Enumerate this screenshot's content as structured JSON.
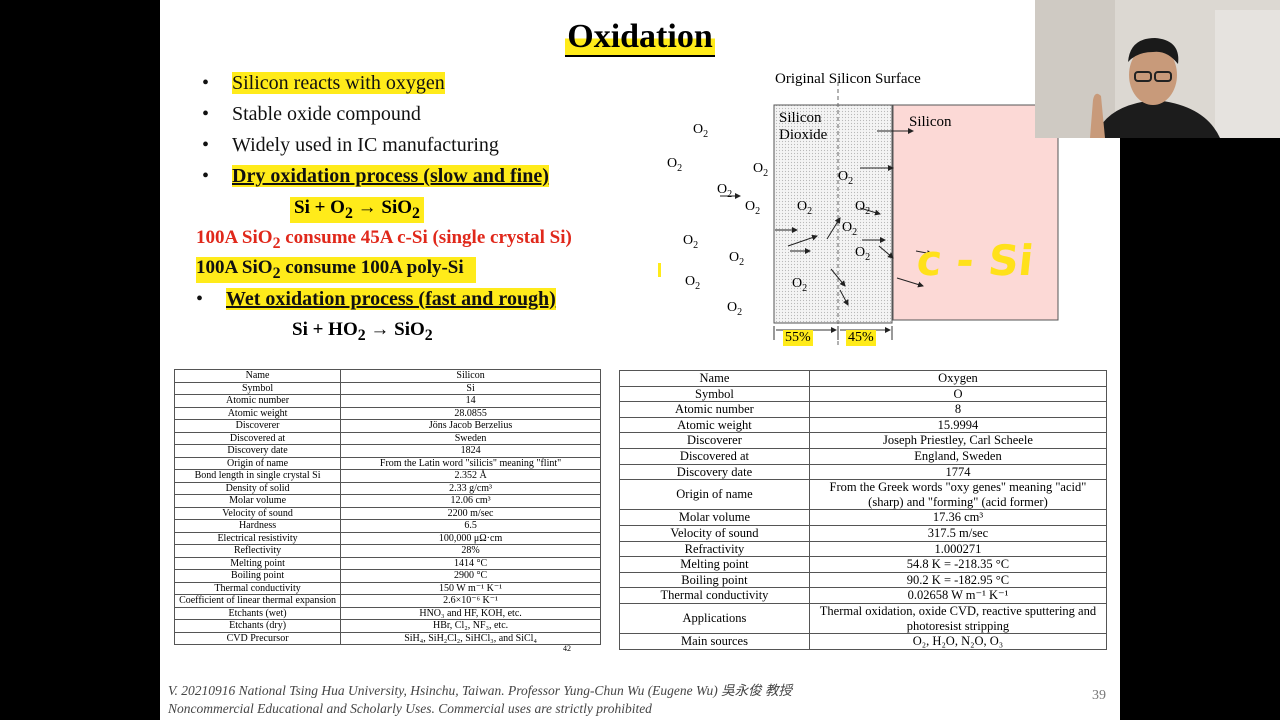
{
  "slide": {
    "title": "Oxidation",
    "bullets": [
      {
        "marker": "•",
        "text": "Silicon reacts with oxygen"
      },
      {
        "marker": "•",
        "text": "Stable oxide compound"
      },
      {
        "marker": "•",
        "text": "Widely used in IC manufacturing"
      },
      {
        "marker": "•",
        "text": "Dry oxidation process (slow and fine)"
      }
    ],
    "dry_equation": {
      "a": "Si + O",
      "b": "2",
      "c": " → SiO",
      "d": "2"
    },
    "red_line": {
      "a": "100A SiO",
      "b": "2",
      "c": " consume 45A c-Si (single crystal Si)"
    },
    "poly_line": {
      "a": "100A SiO",
      "b": "2",
      "c": " consume 100A poly-Si"
    },
    "wet_bullet": {
      "marker": "•",
      "text": "Wet oxidation process (fast and rough)"
    },
    "wet_equation": {
      "a": "Si + HO",
      "b": "2",
      "c": " → SiO",
      "d": "2"
    },
    "page_number": "39",
    "footer_line1": "V. 20210916 National Tsing Hua University, Hsinchu, Taiwan. Professor Yung-Chun Wu (Eugene Wu) 吳永俊 教授",
    "footer_line2": "Noncommercial Educational and Scholarly Uses. Commercial uses are strictly prohibited"
  },
  "diagram": {
    "surface_label": "Original Silicon Surface",
    "oxide_label_1": "Silicon",
    "oxide_label_2": "Dioxide",
    "silicon_label": "Silicon",
    "o2_main": "O",
    "o2_sub": "2",
    "pct_left": "55%",
    "pct_right": "45%",
    "handwritten": "c - Si"
  },
  "silicon_table": {
    "rows": [
      [
        "Name",
        "Silicon"
      ],
      [
        "Symbol",
        "Si"
      ],
      [
        "Atomic number",
        "14"
      ],
      [
        "Atomic weight",
        "28.0855"
      ],
      [
        "Discoverer",
        "Jöns Jacob Berzelius"
      ],
      [
        "Discovered at",
        "Sweden"
      ],
      [
        "Discovery date",
        "1824"
      ],
      [
        "Origin of name",
        "From the Latin word \"silicis\" meaning \"flint\""
      ],
      [
        "Bond length in single crystal Si",
        "2.352 Å"
      ],
      [
        "Density of solid",
        "2.33 g/cm³"
      ],
      [
        "Molar volume",
        "12.06 cm³"
      ],
      [
        "Velocity of sound",
        "2200 m/sec"
      ],
      [
        "Hardness",
        "6.5"
      ],
      [
        "Electrical resistivity",
        "100,000 μΩ·cm"
      ],
      [
        "Reflectivity",
        "28%"
      ],
      [
        "Melting point",
        "1414 °C"
      ],
      [
        "Boiling point",
        "2900 °C"
      ],
      [
        "Thermal conductivity",
        "150 W m⁻¹ K⁻¹"
      ],
      [
        "Coefficient of linear thermal expansion",
        "2.6×10⁻⁶ K⁻¹"
      ],
      [
        "Etchants (wet)",
        "HNO₃ and HF, KOH, etc."
      ],
      [
        "Etchants (dry)",
        "HBr, Cl₂, NF₃, etc."
      ],
      [
        "CVD Precursor",
        "SiH₄, SiH₂Cl₂, SiHCl₃, and SiCl₄"
      ]
    ],
    "ref_number": "42"
  },
  "oxygen_table": {
    "rows": [
      [
        "Name",
        "Oxygen"
      ],
      [
        "Symbol",
        "O"
      ],
      [
        "Atomic number",
        "8"
      ],
      [
        "Atomic weight",
        "15.9994"
      ],
      [
        "Discoverer",
        "Joseph Priestley, Carl Scheele"
      ],
      [
        "Discovered at",
        "England, Sweden"
      ],
      [
        "Discovery date",
        "1774"
      ],
      [
        "Origin of name",
        "From the Greek words \"oxy genes\" meaning \"acid\" (sharp) and \"forming\" (acid former)"
      ],
      [
        "Molar volume",
        "17.36 cm³"
      ],
      [
        "Velocity of sound",
        "317.5 m/sec"
      ],
      [
        "Refractivity",
        "1.000271"
      ],
      [
        "Melting point",
        "54.8 K = -218.35 °C"
      ],
      [
        "Boiling point",
        "90.2 K = -182.95 °C"
      ],
      [
        "Thermal conductivity",
        "0.02658 W m⁻¹ K⁻¹"
      ],
      [
        "Applications",
        "Thermal oxidation, oxide CVD, reactive sputtering and photoresist stripping"
      ],
      [
        "Main sources",
        "O₂, H₂O, N₂O, O₃"
      ]
    ]
  },
  "colors": {
    "highlight": "#ffeb1a",
    "red_text": "#e0281b",
    "silicon_fill": "#fcd9d6",
    "oxide_fill": "#e8e8e8"
  }
}
